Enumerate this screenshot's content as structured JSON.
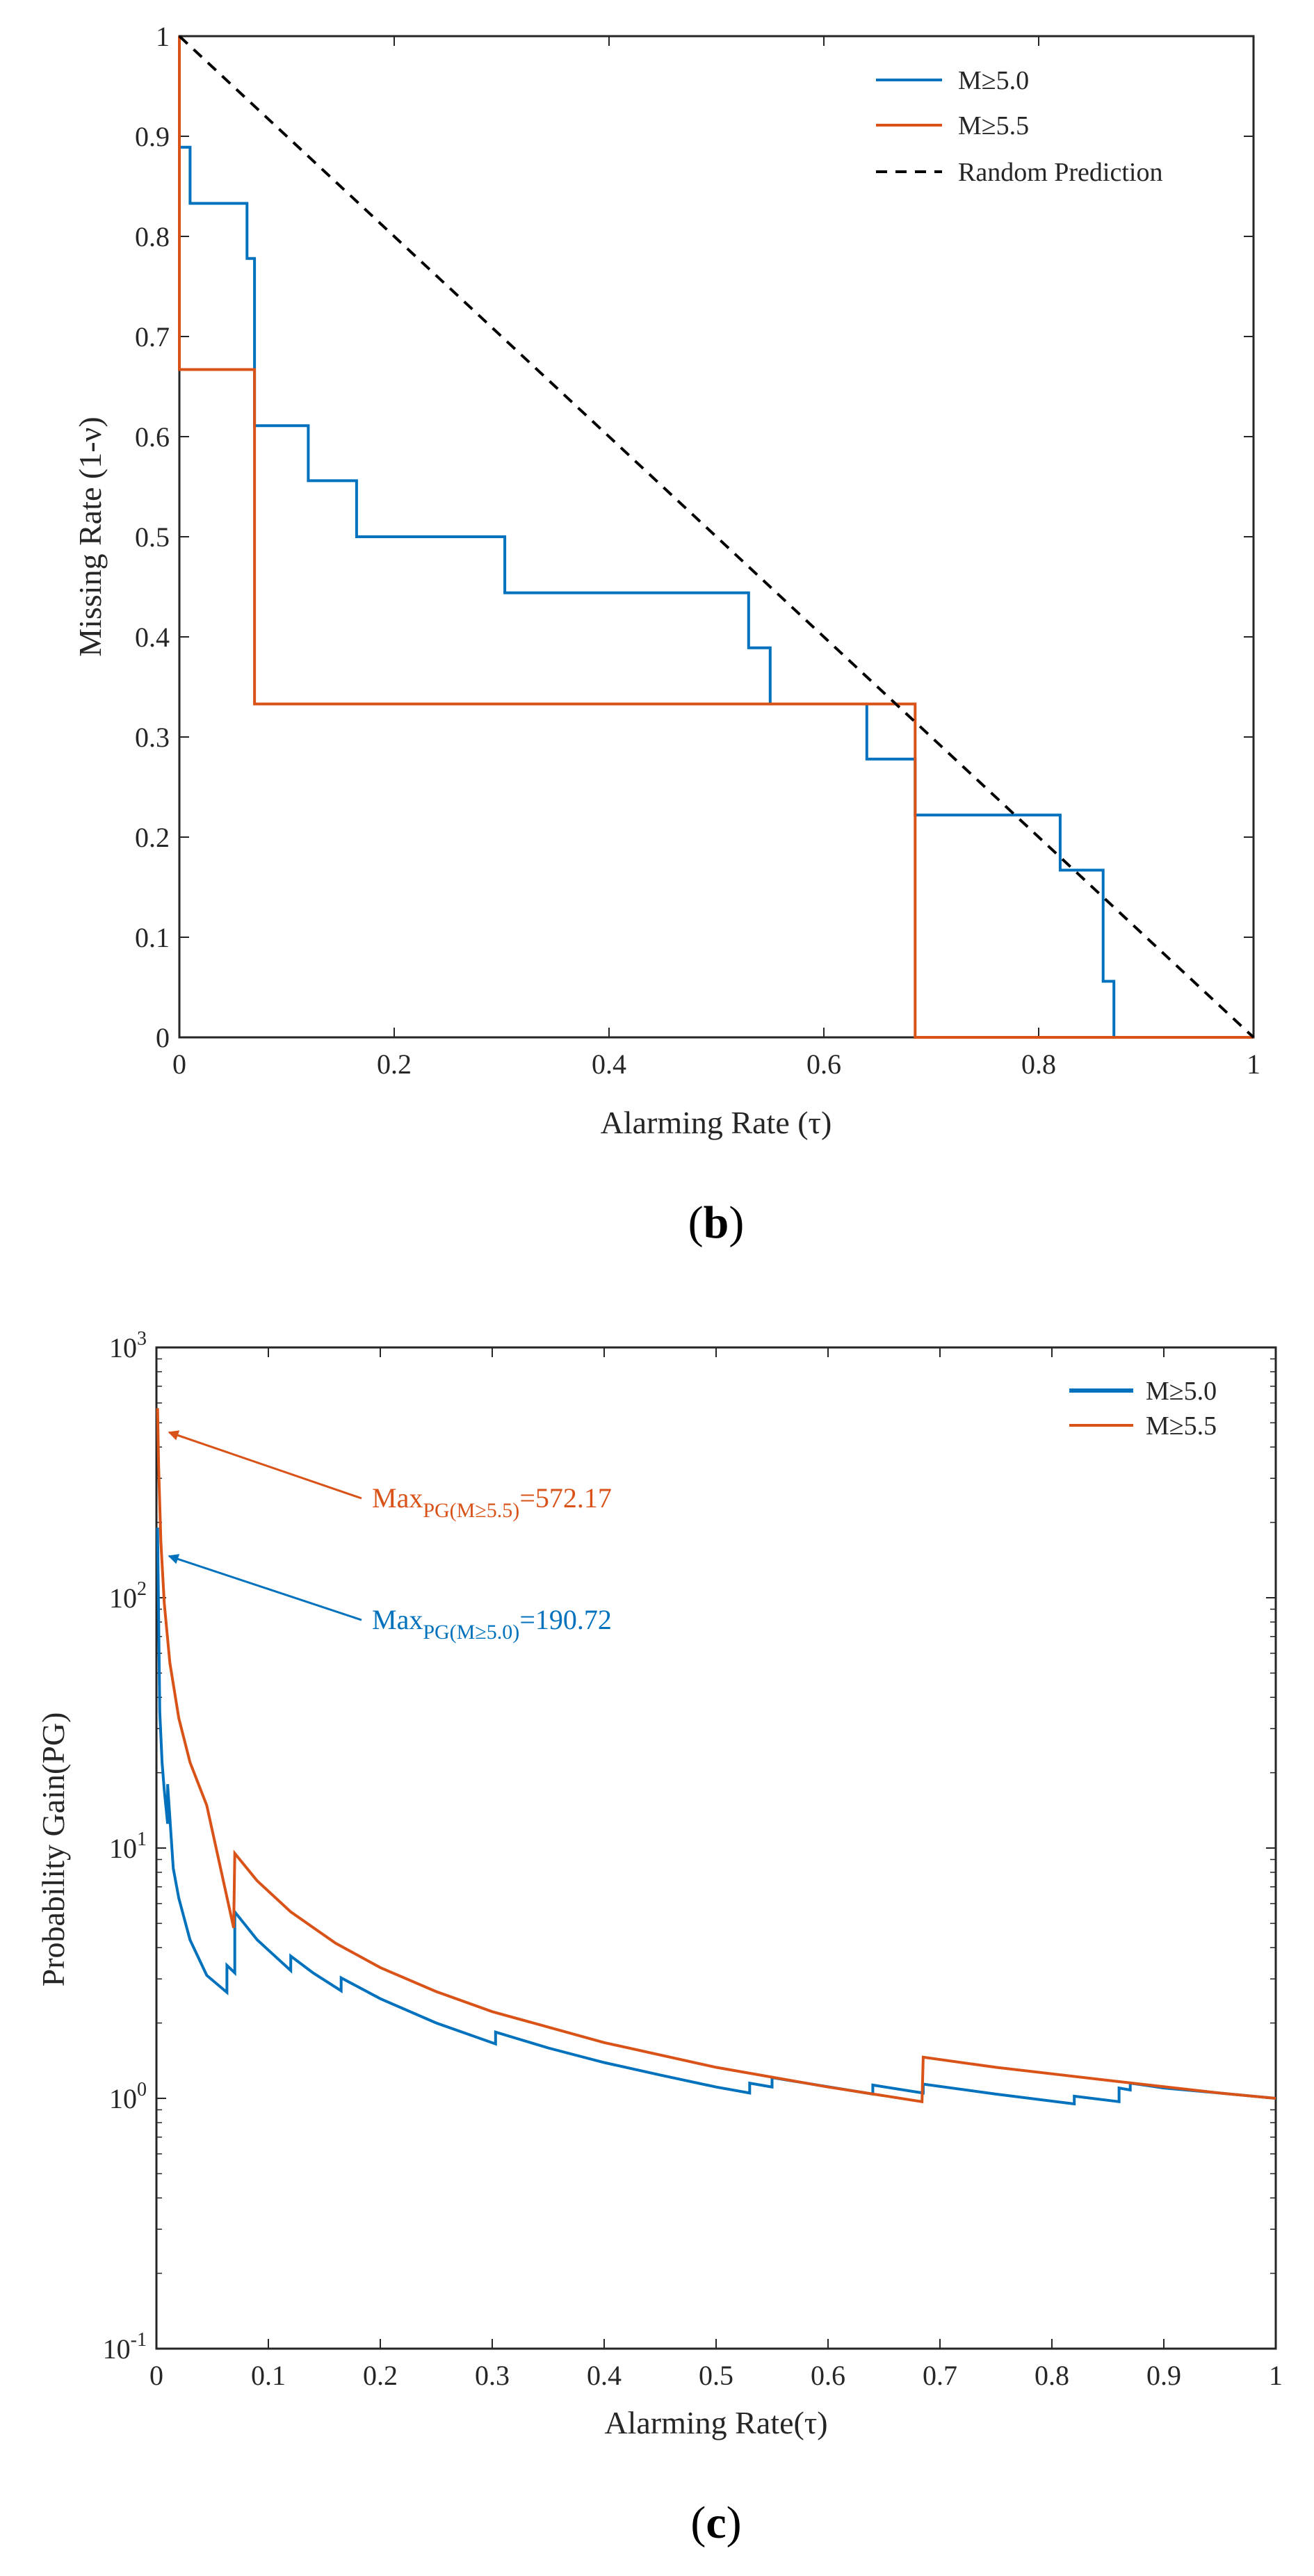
{
  "colors": {
    "m50": "#0072BD",
    "m55": "#D95319",
    "random": "#000000",
    "axis": "#262626"
  },
  "chart_data": [
    {
      "panel_label": "(b)",
      "panel_letter": "b",
      "type": "line",
      "xlabel": "Alarming Rate (τ)",
      "ylabel": "Missing Rate (1-ν)",
      "xlim": [
        0,
        1
      ],
      "ylim": [
        0,
        1
      ],
      "yscale": "linear",
      "xticks": [
        0,
        0.2,
        0.4,
        0.6,
        0.8,
        1
      ],
      "xtick_labels": [
        "0",
        "0.2",
        "0.4",
        "0.6",
        "0.8",
        "1"
      ],
      "yticks": [
        0,
        0.1,
        0.2,
        0.3,
        0.4,
        0.5,
        0.6,
        0.7,
        0.8,
        0.9,
        1
      ],
      "ytick_labels": [
        "0",
        "0.1",
        "0.2",
        "0.3",
        "0.4",
        "0.5",
        "0.6",
        "0.7",
        "0.8",
        "0.9",
        "1"
      ],
      "legend_position": "top-right",
      "series": [
        {
          "name": "M≥5.0",
          "color_key": "m50",
          "style": "solid",
          "x": [
            0,
            0,
            0.01,
            0.01,
            0.063,
            0.063,
            0.07,
            0.07,
            0.12,
            0.12,
            0.165,
            0.165,
            0.303,
            0.303,
            0.53,
            0.53,
            0.55,
            0.55,
            0.64,
            0.64,
            0.685,
            0.685,
            0.82,
            0.82,
            0.86,
            0.86,
            0.87,
            0.87,
            1
          ],
          "y": [
            1,
            0.889,
            0.889,
            0.833,
            0.833,
            0.778,
            0.778,
            0.611,
            0.611,
            0.556,
            0.556,
            0.5,
            0.5,
            0.444,
            0.444,
            0.389,
            0.389,
            0.333,
            0.333,
            0.278,
            0.278,
            0.222,
            0.222,
            0.167,
            0.167,
            0.056,
            0.056,
            0,
            0
          ]
        },
        {
          "name": "M≥5.5",
          "color_key": "m55",
          "style": "solid",
          "x": [
            0,
            0,
            0.07,
            0.07,
            0.685,
            0.685,
            1
          ],
          "y": [
            1,
            0.667,
            0.667,
            0.333,
            0.333,
            0,
            0
          ]
        },
        {
          "name": "Random Prediction",
          "color_key": "random",
          "style": "dashed",
          "x": [
            0,
            1
          ],
          "y": [
            1,
            0
          ]
        }
      ]
    },
    {
      "panel_label": "(c)",
      "panel_letter": "c",
      "type": "line",
      "xlabel": "Alarming Rate(τ)",
      "ylabel": "Probability Gain(PG)",
      "xlim": [
        0,
        1
      ],
      "ylim": [
        0.1,
        1000
      ],
      "yscale": "log",
      "xticks": [
        0,
        0.1,
        0.2,
        0.3,
        0.4,
        0.5,
        0.6,
        0.7,
        0.8,
        0.9,
        1
      ],
      "xtick_labels": [
        "0",
        "0.1",
        "0.2",
        "0.3",
        "0.4",
        "0.5",
        "0.6",
        "0.7",
        "0.8",
        "0.9",
        "1"
      ],
      "yticks": [
        0.1,
        1,
        10,
        100,
        1000
      ],
      "ytick_labels": [
        {
          "base": "10",
          "exp": "-1"
        },
        {
          "base": "10",
          "exp": "0"
        },
        {
          "base": "10",
          "exp": "1"
        },
        {
          "base": "10",
          "exp": "2"
        },
        {
          "base": "10",
          "exp": "3"
        }
      ],
      "legend_position": "top-right",
      "series": [
        {
          "name": "M≥5.0",
          "color_key": "m50",
          "style": "solid",
          "x": [
            0.001,
            0.003,
            0.005,
            0.007,
            0.01,
            0.01,
            0.015,
            0.02,
            0.03,
            0.045,
            0.063,
            0.063,
            0.07,
            0.07,
            0.09,
            0.12,
            0.12,
            0.14,
            0.165,
            0.165,
            0.2,
            0.25,
            0.303,
            0.303,
            0.35,
            0.4,
            0.45,
            0.5,
            0.53,
            0.53,
            0.55,
            0.55,
            0.64,
            0.64,
            0.685,
            0.685,
            0.75,
            0.82,
            0.82,
            0.86,
            0.86,
            0.87,
            0.87,
            0.9,
            0.95,
            1
          ],
          "y": [
            190.72,
            35,
            22,
            17,
            12.5,
            18,
            8.3,
            6.3,
            4.3,
            3.1,
            2.65,
            3.4,
            3.17,
            5.56,
            4.3,
            3.24,
            3.7,
            3.17,
            2.69,
            3.03,
            2.5,
            2.0,
            1.65,
            1.84,
            1.59,
            1.39,
            1.24,
            1.11,
            1.05,
            1.15,
            1.11,
            1.21,
            1.04,
            1.13,
            1.05,
            1.14,
            1.04,
            0.95,
            1.02,
            0.97,
            1.1,
            1.08,
            1.15,
            1.1,
            1.05,
            1.0
          ]
        },
        {
          "name": "M≥5.5",
          "color_key": "m55",
          "style": "solid",
          "x": [
            0.001,
            0.002,
            0.004,
            0.007,
            0.012,
            0.02,
            0.03,
            0.045,
            0.069,
            0.07,
            0.09,
            0.12,
            0.16,
            0.2,
            0.25,
            0.3,
            0.4,
            0.5,
            0.6,
            0.684,
            0.685,
            0.75,
            0.85,
            0.95,
            1
          ],
          "y": [
            572.17,
            333,
            167,
            95,
            55,
            33,
            22,
            14.8,
            4.8,
            9.52,
            7.4,
            5.56,
            4.17,
            3.33,
            2.67,
            2.22,
            1.67,
            1.33,
            1.11,
            0.97,
            1.46,
            1.33,
            1.18,
            1.05,
            1.0
          ]
        }
      ],
      "annotations": [
        {
          "prefix": "Max",
          "subscript": "PG(M≥5.5)",
          "suffix": "=572.17",
          "color_key": "m55",
          "target_x": 0.0,
          "target_y": 572.17
        },
        {
          "prefix": "Max",
          "subscript": "PG(M≥5.0)",
          "suffix": "=190.72",
          "color_key": "m50",
          "target_x": 0.0,
          "target_y": 190.72
        }
      ]
    }
  ]
}
